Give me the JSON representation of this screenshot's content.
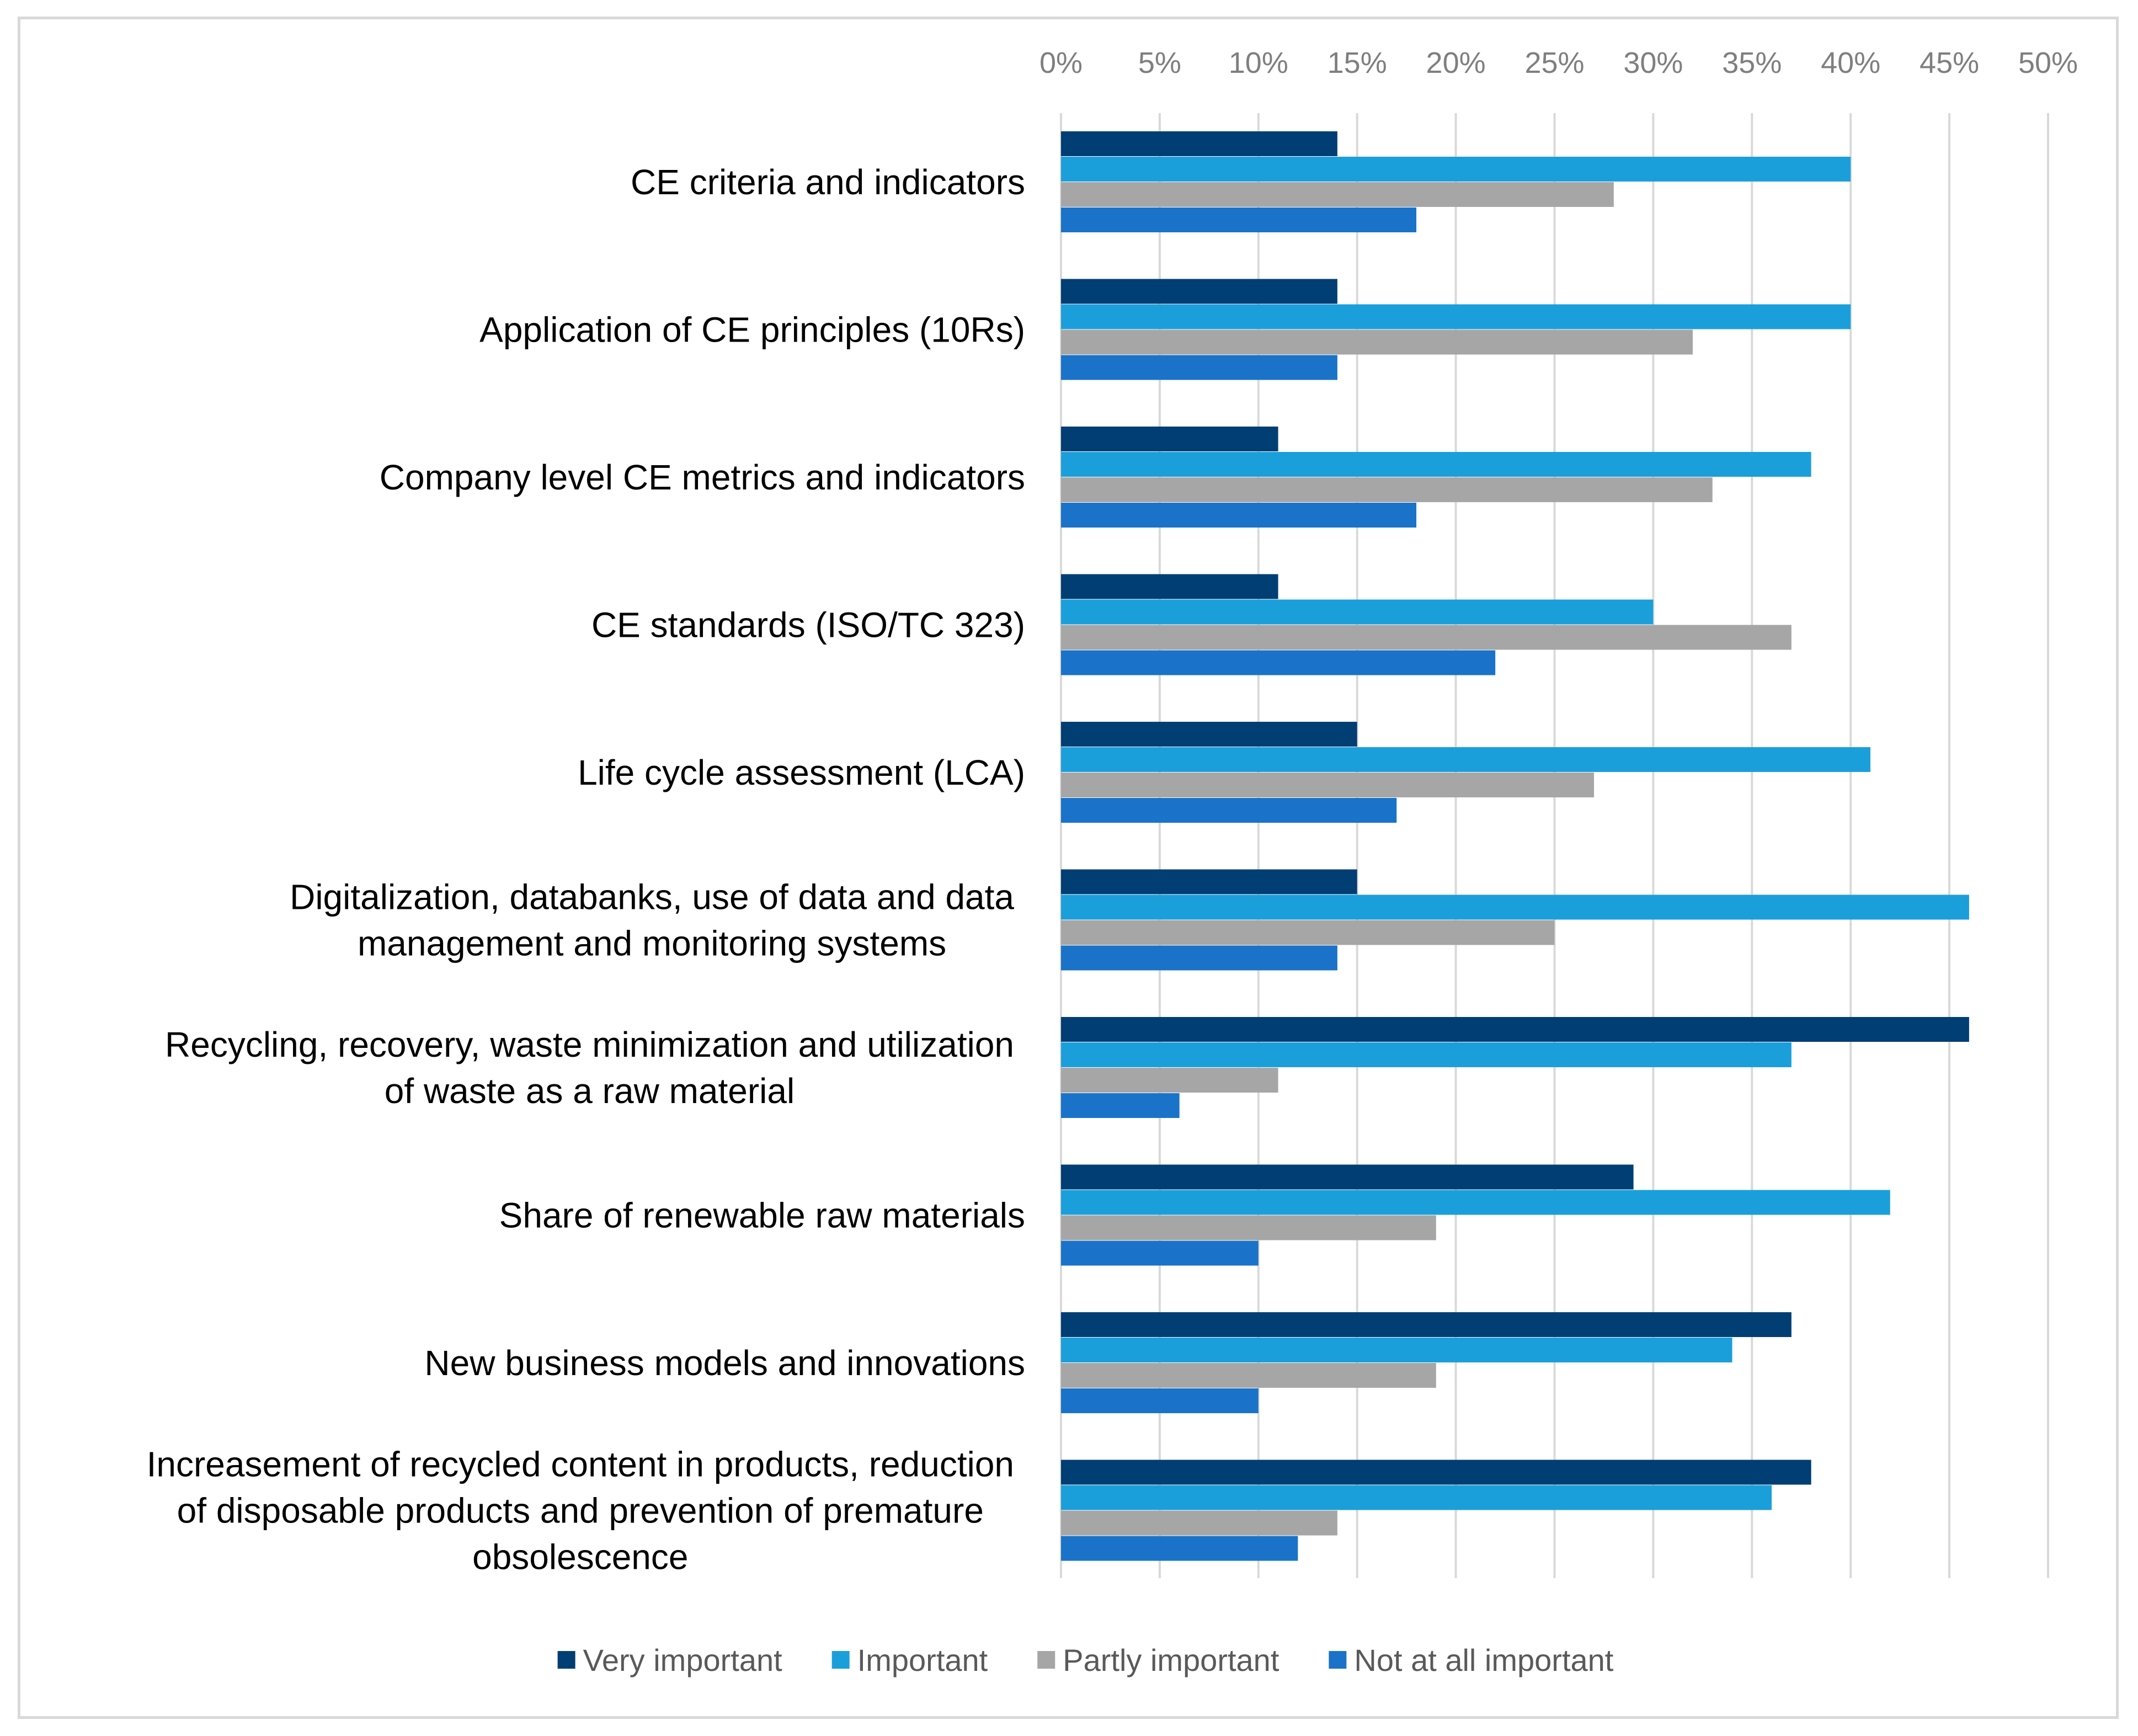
{
  "chart_data": {
    "type": "bar",
    "orientation": "horizontal",
    "title": "",
    "xlabel": "",
    "ylabel": "",
    "xlim": [
      0,
      50
    ],
    "x_ticks": [
      "0%",
      "5%",
      "10%",
      "15%",
      "20%",
      "25%",
      "30%",
      "35%",
      "40%",
      "45%",
      "50%"
    ],
    "x_tick_values": [
      0,
      5,
      10,
      15,
      20,
      25,
      30,
      35,
      40,
      45,
      50
    ],
    "grid": true,
    "legend_position": "bottom",
    "categories": [
      [
        "CE criteria and indicators"
      ],
      [
        "Application of CE principles (10Rs)"
      ],
      [
        "Company level CE metrics and indicators"
      ],
      [
        "CE standards (ISO/TC 323)"
      ],
      [
        "Life cycle assessment (LCA)"
      ],
      [
        "Digitalization, databanks, use of data and data",
        "management and monitoring systems"
      ],
      [
        "Recycling, recovery, waste minimization and utilization",
        "of waste as a raw material"
      ],
      [
        "Share of renewable raw materials"
      ],
      [
        "New business models and innovations"
      ],
      [
        "Increasement of recycled content in products, reduction",
        "of disposable products and prevention of premature",
        "obsolescence"
      ]
    ],
    "series": [
      {
        "name": "Very important",
        "color": "#003e74",
        "values": [
          14,
          14,
          11,
          11,
          15,
          15,
          46,
          29,
          37,
          38
        ]
      },
      {
        "name": "Important",
        "color": "#1b9fdb",
        "values": [
          40,
          40,
          38,
          30,
          41,
          46,
          37,
          42,
          34,
          36
        ]
      },
      {
        "name": "Partly important",
        "color": "#a6a6a6",
        "values": [
          28,
          32,
          33,
          37,
          27,
          25,
          11,
          19,
          19,
          14
        ]
      },
      {
        "name": "Not at all important",
        "color": "#1a73c8",
        "values": [
          18,
          14,
          18,
          22,
          17,
          14,
          6,
          10,
          10,
          12
        ]
      }
    ]
  }
}
